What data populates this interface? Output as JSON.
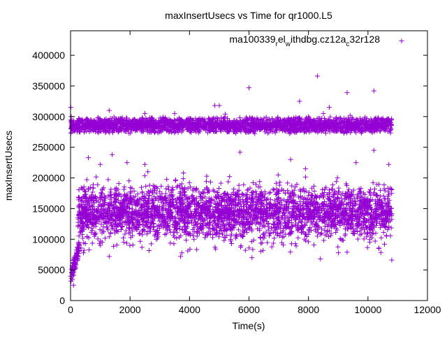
{
  "chart_data": {
    "type": "scatter",
    "title": "maxInsertUsecs vs Time for qr1000.L5",
    "xlabel": "Time(s)",
    "ylabel": "maxInsertUsecs",
    "xlim": [
      0,
      12000
    ],
    "ylim": [
      0,
      440000
    ],
    "xticks": [
      0,
      2000,
      4000,
      6000,
      8000,
      10000,
      12000
    ],
    "yticks": [
      0,
      50000,
      100000,
      150000,
      200000,
      250000,
      300000,
      350000,
      400000
    ],
    "grid": false,
    "legend_placement": "top-right",
    "series": [
      {
        "name": "ma100339_rel_withdbg.cz12a_c32r128",
        "legend_parts": [
          "ma100339",
          "r",
          "el",
          "w",
          "ithdbg.cz12a",
          "c",
          "32r128"
        ],
        "color": "#9400d3",
        "marker": "+",
        "dense_bands": [
          {
            "x": [
              0,
              10800
            ],
            "y": [
              272000,
              300000
            ],
            "count": 2600
          },
          {
            "x": [
              250,
              10800
            ],
            "y": [
              100000,
              190000
            ],
            "count": 2600
          },
          {
            "x": [
              250,
              10800
            ],
            "y": [
              70000,
              210000
            ],
            "count": 700
          },
          {
            "x": [
              0,
              300
            ],
            "y": [
              22000,
              100000
            ],
            "count": 90
          }
        ],
        "points": [
          [
            600,
            233000
          ],
          [
            1000,
            222000
          ],
          [
            1400,
            238000
          ],
          [
            1900,
            225000
          ],
          [
            2500,
            222000
          ],
          [
            2600,
            210000
          ],
          [
            4850,
            318000
          ],
          [
            5000,
            318000
          ],
          [
            5700,
            242000
          ],
          [
            6000,
            347000
          ],
          [
            7700,
            325000
          ],
          [
            8000,
            300000
          ],
          [
            8300,
            366000
          ],
          [
            8700,
            315000
          ],
          [
            9300,
            339000
          ],
          [
            10200,
            342000
          ],
          [
            10200,
            245000
          ],
          [
            7400,
            230000
          ],
          [
            9600,
            225000
          ],
          [
            10700,
            222000
          ],
          [
            10800,
            66000
          ],
          [
            8400,
            68000
          ],
          [
            6100,
            70000
          ],
          [
            3700,
            72000
          ],
          [
            1300,
            72000
          ],
          [
            300,
            90000
          ],
          [
            100,
            25000
          ],
          [
            50,
            45000
          ],
          [
            20,
            300000
          ],
          [
            10,
            315000
          ],
          [
            2500,
            305000
          ],
          [
            1300,
            310000
          ],
          [
            3500,
            305000
          ],
          [
            5200,
            304000
          ],
          [
            8500,
            305000
          ],
          [
            9400,
            302000
          ],
          [
            7900,
            215000
          ]
        ]
      }
    ]
  }
}
